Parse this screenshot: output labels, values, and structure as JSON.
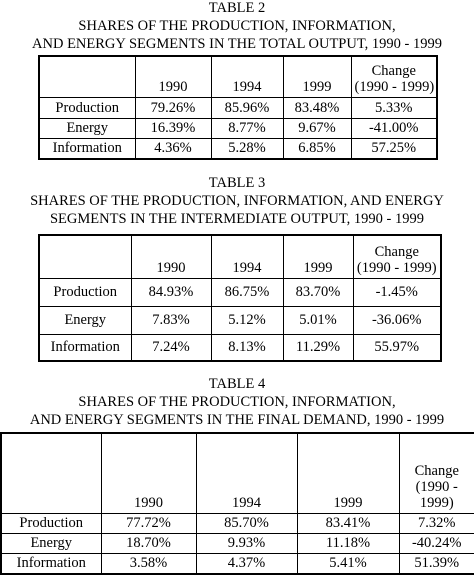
{
  "tables": [
    {
      "title": [
        "TABLE 2",
        "SHARES OF THE PRODUCTION, INFORMATION,",
        "AND ENERGY SEGMENTS IN THE TOTAL OUTPUT, 1990 - 1999"
      ],
      "header": [
        [
          "1990"
        ],
        [
          "1994"
        ],
        [
          "1999"
        ],
        [
          "Change",
          "(1990 - 1999)"
        ]
      ],
      "rows": [
        [
          "Production",
          "79.26%",
          "85.96%",
          "83.48%",
          "5.33%"
        ],
        [
          "Energy",
          "16.39%",
          "8.77%",
          "9.67%",
          "-41.00%"
        ],
        [
          "Information",
          "4.36%",
          "5.28%",
          "6.85%",
          "57.25%"
        ]
      ]
    },
    {
      "title": [
        "TABLE 3",
        "SHARES OF THE PRODUCTION, INFORMATION, AND ENERGY",
        "SEGMENTS IN THE INTERMEDIATE OUTPUT, 1990 - 1999"
      ],
      "header": [
        [
          "1990"
        ],
        [
          "1994"
        ],
        [
          "1999"
        ],
        [
          "Change",
          "(1990 - 1999)"
        ]
      ],
      "rows": [
        [
          "Production",
          "84.93%",
          "86.75%",
          "83.70%",
          "-1.45%"
        ],
        [
          "Energy",
          "7.83%",
          "5.12%",
          "5.01%",
          "-36.06%"
        ],
        [
          "Information",
          "7.24%",
          "8.13%",
          "11.29%",
          "55.97%"
        ]
      ]
    },
    {
      "title": [
        "TABLE 4",
        "SHARES OF THE PRODUCTION, INFORMATION,",
        "AND ENERGY SEGMENTS IN THE FINAL DEMAND, 1990 - 1999"
      ],
      "header": [
        [
          "1990"
        ],
        [
          "1994"
        ],
        [
          "1999"
        ],
        [
          "Change",
          "(1990 -",
          "1999)"
        ]
      ],
      "rows": [
        [
          "Production",
          "77.72%",
          "85.70%",
          "83.41%",
          "7.32%"
        ],
        [
          "Energy",
          "18.70%",
          "9.93%",
          "11.18%",
          "-40.24%"
        ],
        [
          "Information",
          "3.58%",
          "4.37%",
          "5.41%",
          "51.39%"
        ]
      ]
    }
  ]
}
